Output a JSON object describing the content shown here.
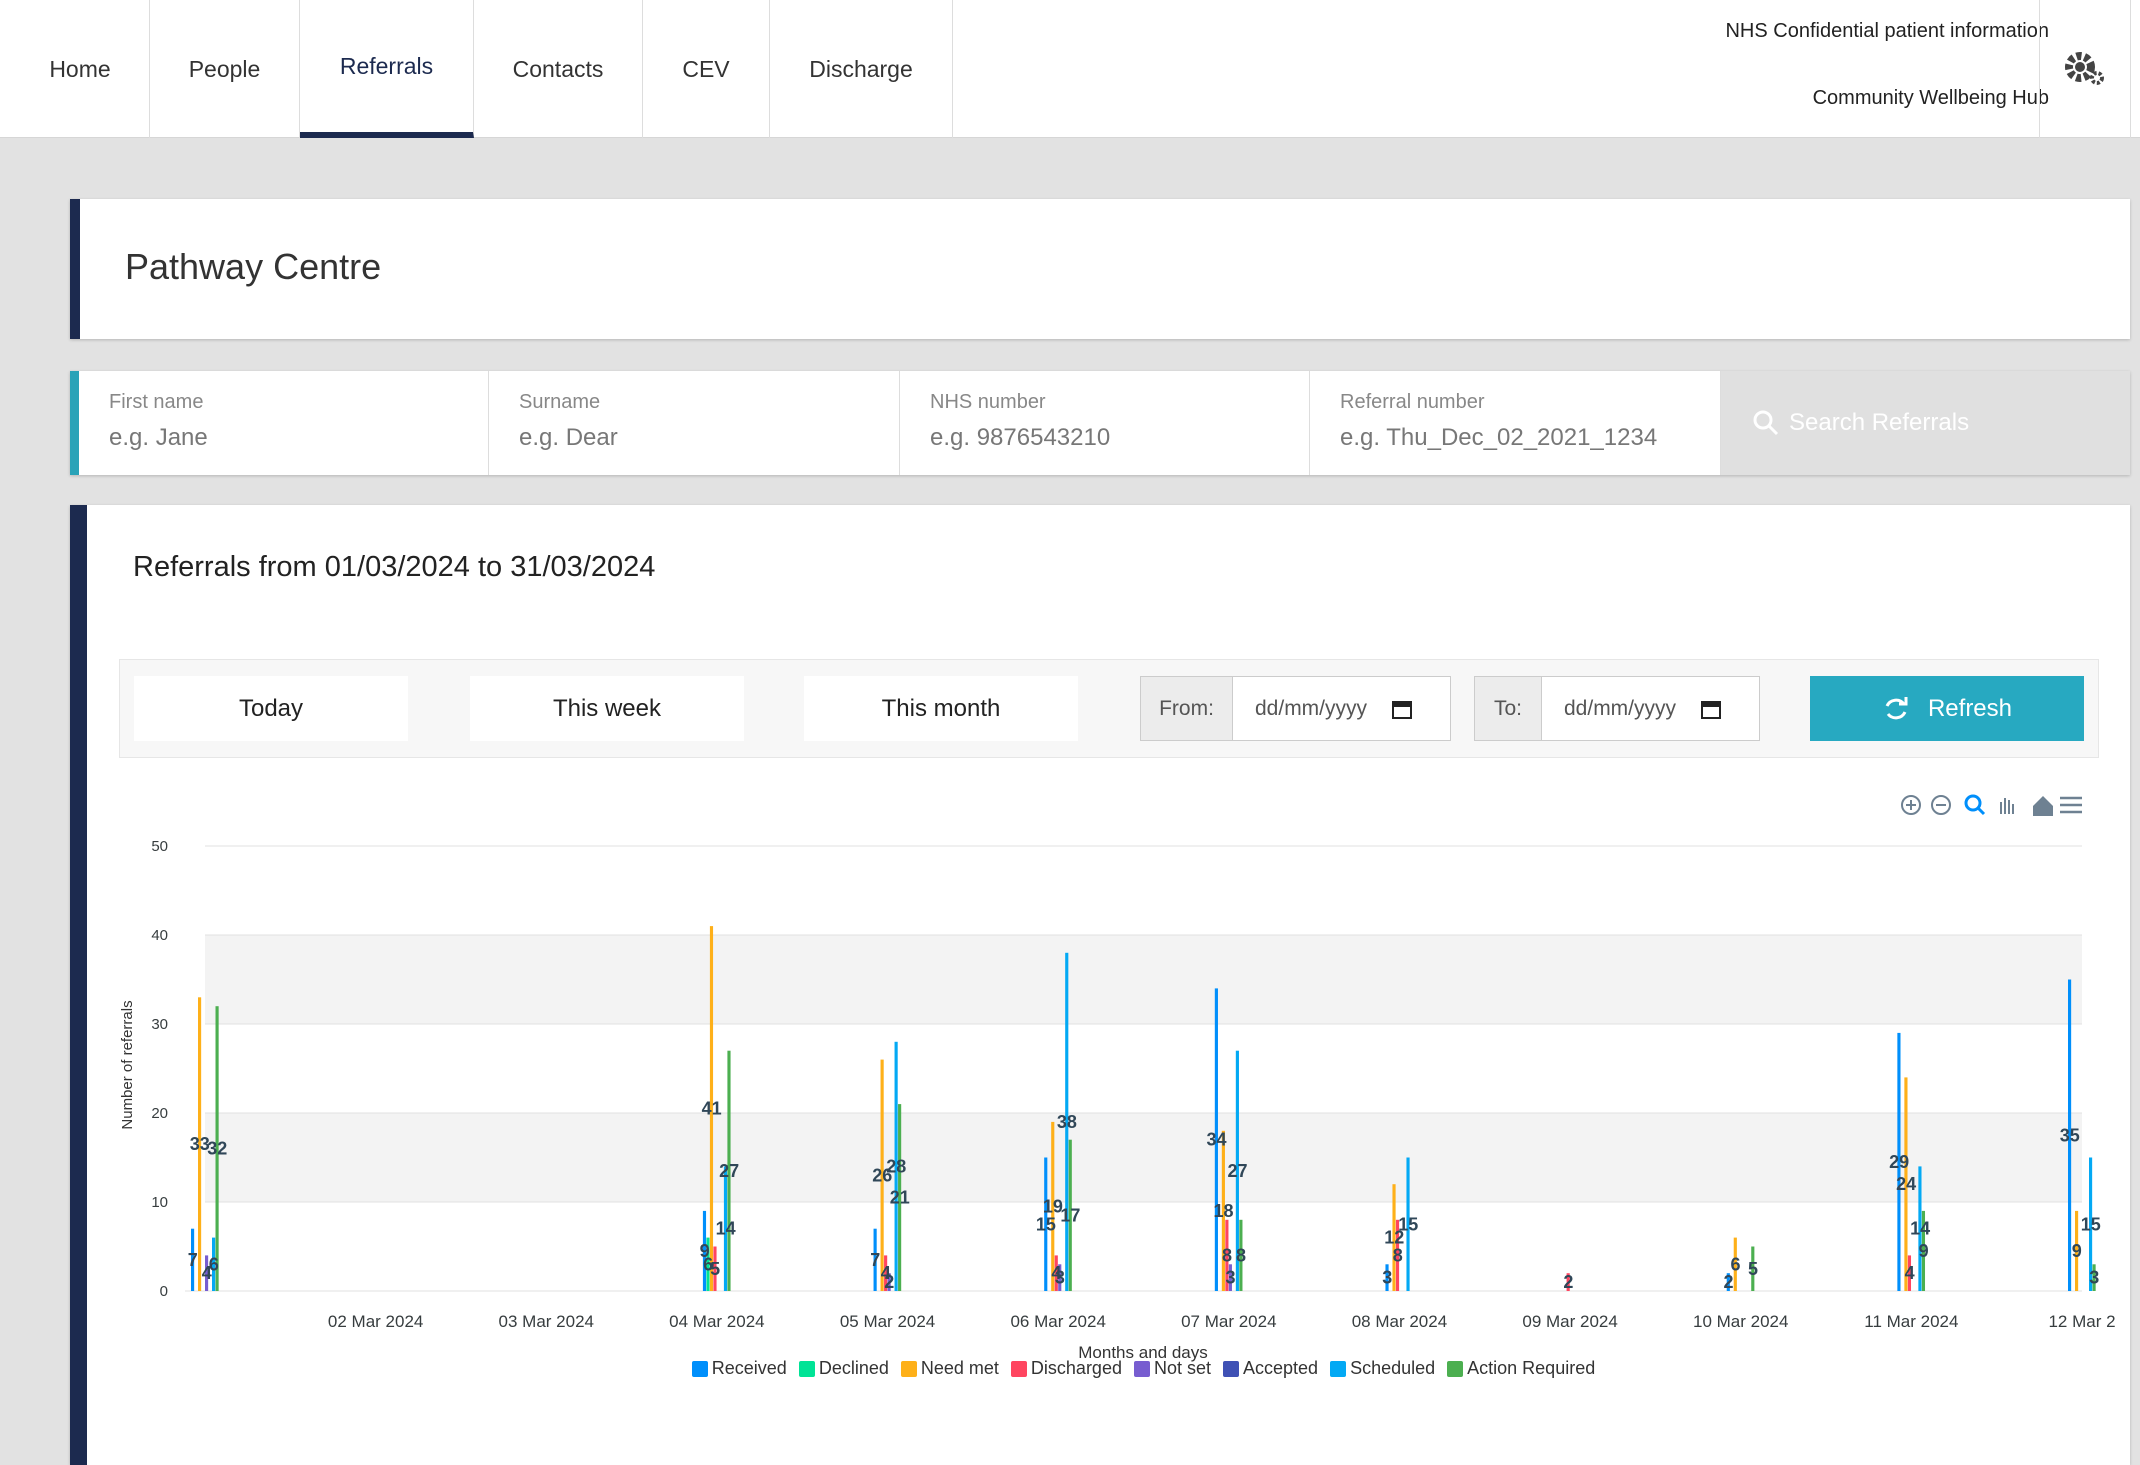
{
  "nav": {
    "tabs": [
      "Home",
      "People",
      "Referrals",
      "Contacts",
      "CEV",
      "Discharge"
    ],
    "info": [
      "NHS Confidential patient information",
      "Community Wellbeing Hub"
    ]
  },
  "header": {
    "title": "Pathway Centre"
  },
  "search": {
    "fields": [
      {
        "label": "First name",
        "placeholder": "e.g. Jane"
      },
      {
        "label": "Surname",
        "placeholder": "e.g. Dear"
      },
      {
        "label": "NHS number",
        "placeholder": "e.g. 9876543210"
      },
      {
        "label": "Referral number",
        "placeholder": "e.g. Thu_Dec_02_2021_1234"
      }
    ],
    "button": "Search Referrals"
  },
  "panel": {
    "title": "Referrals from 01/03/2024 to 31/03/2024",
    "buttons": [
      "Today",
      "This week",
      "This month"
    ],
    "from": "From:",
    "to": "To:",
    "date_placeholder": "dd/mm/yyyy",
    "refresh": "Refresh"
  },
  "chart_data": {
    "type": "bar",
    "x_label": "Months and days",
    "y_label": "Number of referrals",
    "categories": [
      null,
      "02 Mar 2024",
      "03 Mar 2024",
      "04 Mar 2024",
      "05 Mar 2024",
      "06 Mar 2024",
      "07 Mar 2024",
      "08 Mar 2024",
      "09 Mar 2024",
      "10 Mar 2024",
      "11 Mar 2024",
      "12 Mar 2"
    ],
    "series": [
      {
        "name": "Received",
        "color": "#008ffb",
        "values": [
          7,
          0,
          0,
          9,
          7,
          15,
          34,
          3,
          0,
          2,
          29,
          35
        ]
      },
      {
        "name": "Declined",
        "color": "#00e396",
        "values": [
          0,
          0,
          0,
          6,
          0,
          0,
          0,
          0,
          0,
          0,
          0,
          0
        ]
      },
      {
        "name": "Need met",
        "color": "#feb019",
        "values": [
          33,
          0,
          0,
          41,
          26,
          19,
          18,
          12,
          0,
          6,
          24,
          9
        ]
      },
      {
        "name": "Discharged",
        "color": "#ff4560",
        "values": [
          0,
          0,
          0,
          5,
          4,
          4,
          8,
          8,
          2,
          0,
          4,
          0
        ]
      },
      {
        "name": "Not set",
        "color": "#775dd0",
        "values": [
          4,
          0,
          0,
          0,
          2,
          3,
          3,
          0,
          0,
          0,
          0,
          0
        ]
      },
      {
        "name": "Accepted",
        "color": "#3f51b5",
        "values": [
          0,
          0,
          0,
          0,
          0,
          0,
          0,
          0,
          0,
          0,
          0,
          0
        ]
      },
      {
        "name": "Scheduled",
        "color": "#03a9f4",
        "values": [
          6,
          0,
          0,
          14,
          28,
          38,
          27,
          15,
          0,
          0,
          14,
          15
        ]
      },
      {
        "name": "Action Required",
        "color": "#4caf50",
        "values": [
          32,
          0,
          0,
          27,
          21,
          17,
          8,
          0,
          0,
          5,
          9,
          3
        ]
      }
    ],
    "ylim": [
      0,
      50
    ],
    "yticks": [
      0,
      10,
      20,
      30,
      40,
      50
    ],
    "grid": true,
    "legend": "bottom"
  }
}
